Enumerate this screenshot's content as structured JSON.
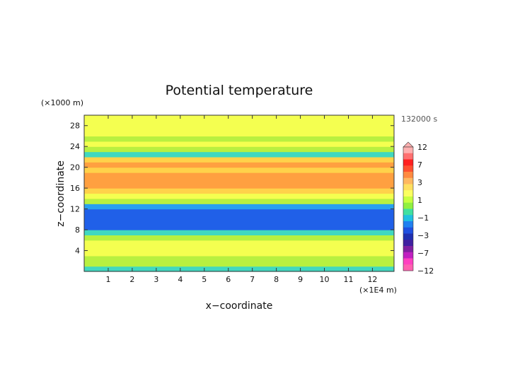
{
  "chart_data": {
    "type": "heatmap",
    "title": "Potential temperature",
    "xlabel": "x−coordinate",
    "ylabel": "z−coordinate",
    "x_unit": "(×1E4 m)",
    "y_unit": "(×1000 m)",
    "time_label": "132000 s",
    "xlim": [
      0,
      12.9
    ],
    "ylim": [
      0,
      30
    ],
    "x_ticks": [
      "1",
      "2",
      "3",
      "4",
      "5",
      "6",
      "7",
      "8",
      "9",
      "10",
      "11",
      "12"
    ],
    "y_ticks": [
      "4",
      "8",
      "12",
      "16",
      "20",
      "24",
      "28"
    ],
    "colorbar": {
      "labels": [
        "12",
        "7",
        "3",
        "1",
        "−1",
        "−3",
        "−7",
        "−12"
      ],
      "colors": [
        "#ffb0b0",
        "#ff7070",
        "#ff2020",
        "#ff5030",
        "#ff8a40",
        "#ffb860",
        "#ffe060",
        "#fbff60",
        "#c8ff40",
        "#90f040",
        "#40e0a0",
        "#20c0e0",
        "#2080f0",
        "#2050e0",
        "#2030b0",
        "#4020a0",
        "#8020a0",
        "#c020c0",
        "#ff40c0",
        "#ff60b0"
      ]
    },
    "profile": {
      "z": [
        0,
        1,
        2,
        3,
        4,
        5,
        6,
        7,
        8,
        9,
        10,
        11,
        12,
        13,
        14,
        15,
        16,
        17,
        18,
        19,
        20,
        21,
        22,
        23,
        24,
        25,
        26,
        27,
        28,
        29,
        30
      ],
      "value": [
        -1.5,
        -1,
        -0.5,
        0,
        0,
        0.5,
        -0.5,
        -2,
        -3.5,
        -4,
        -4,
        -4,
        -3,
        -1,
        0.5,
        1.5,
        2,
        2.5,
        2,
        1.5,
        2.5,
        1.5,
        -2,
        -0.5,
        0,
        -0.5,
        0,
        0,
        0,
        0,
        0
      ]
    }
  }
}
